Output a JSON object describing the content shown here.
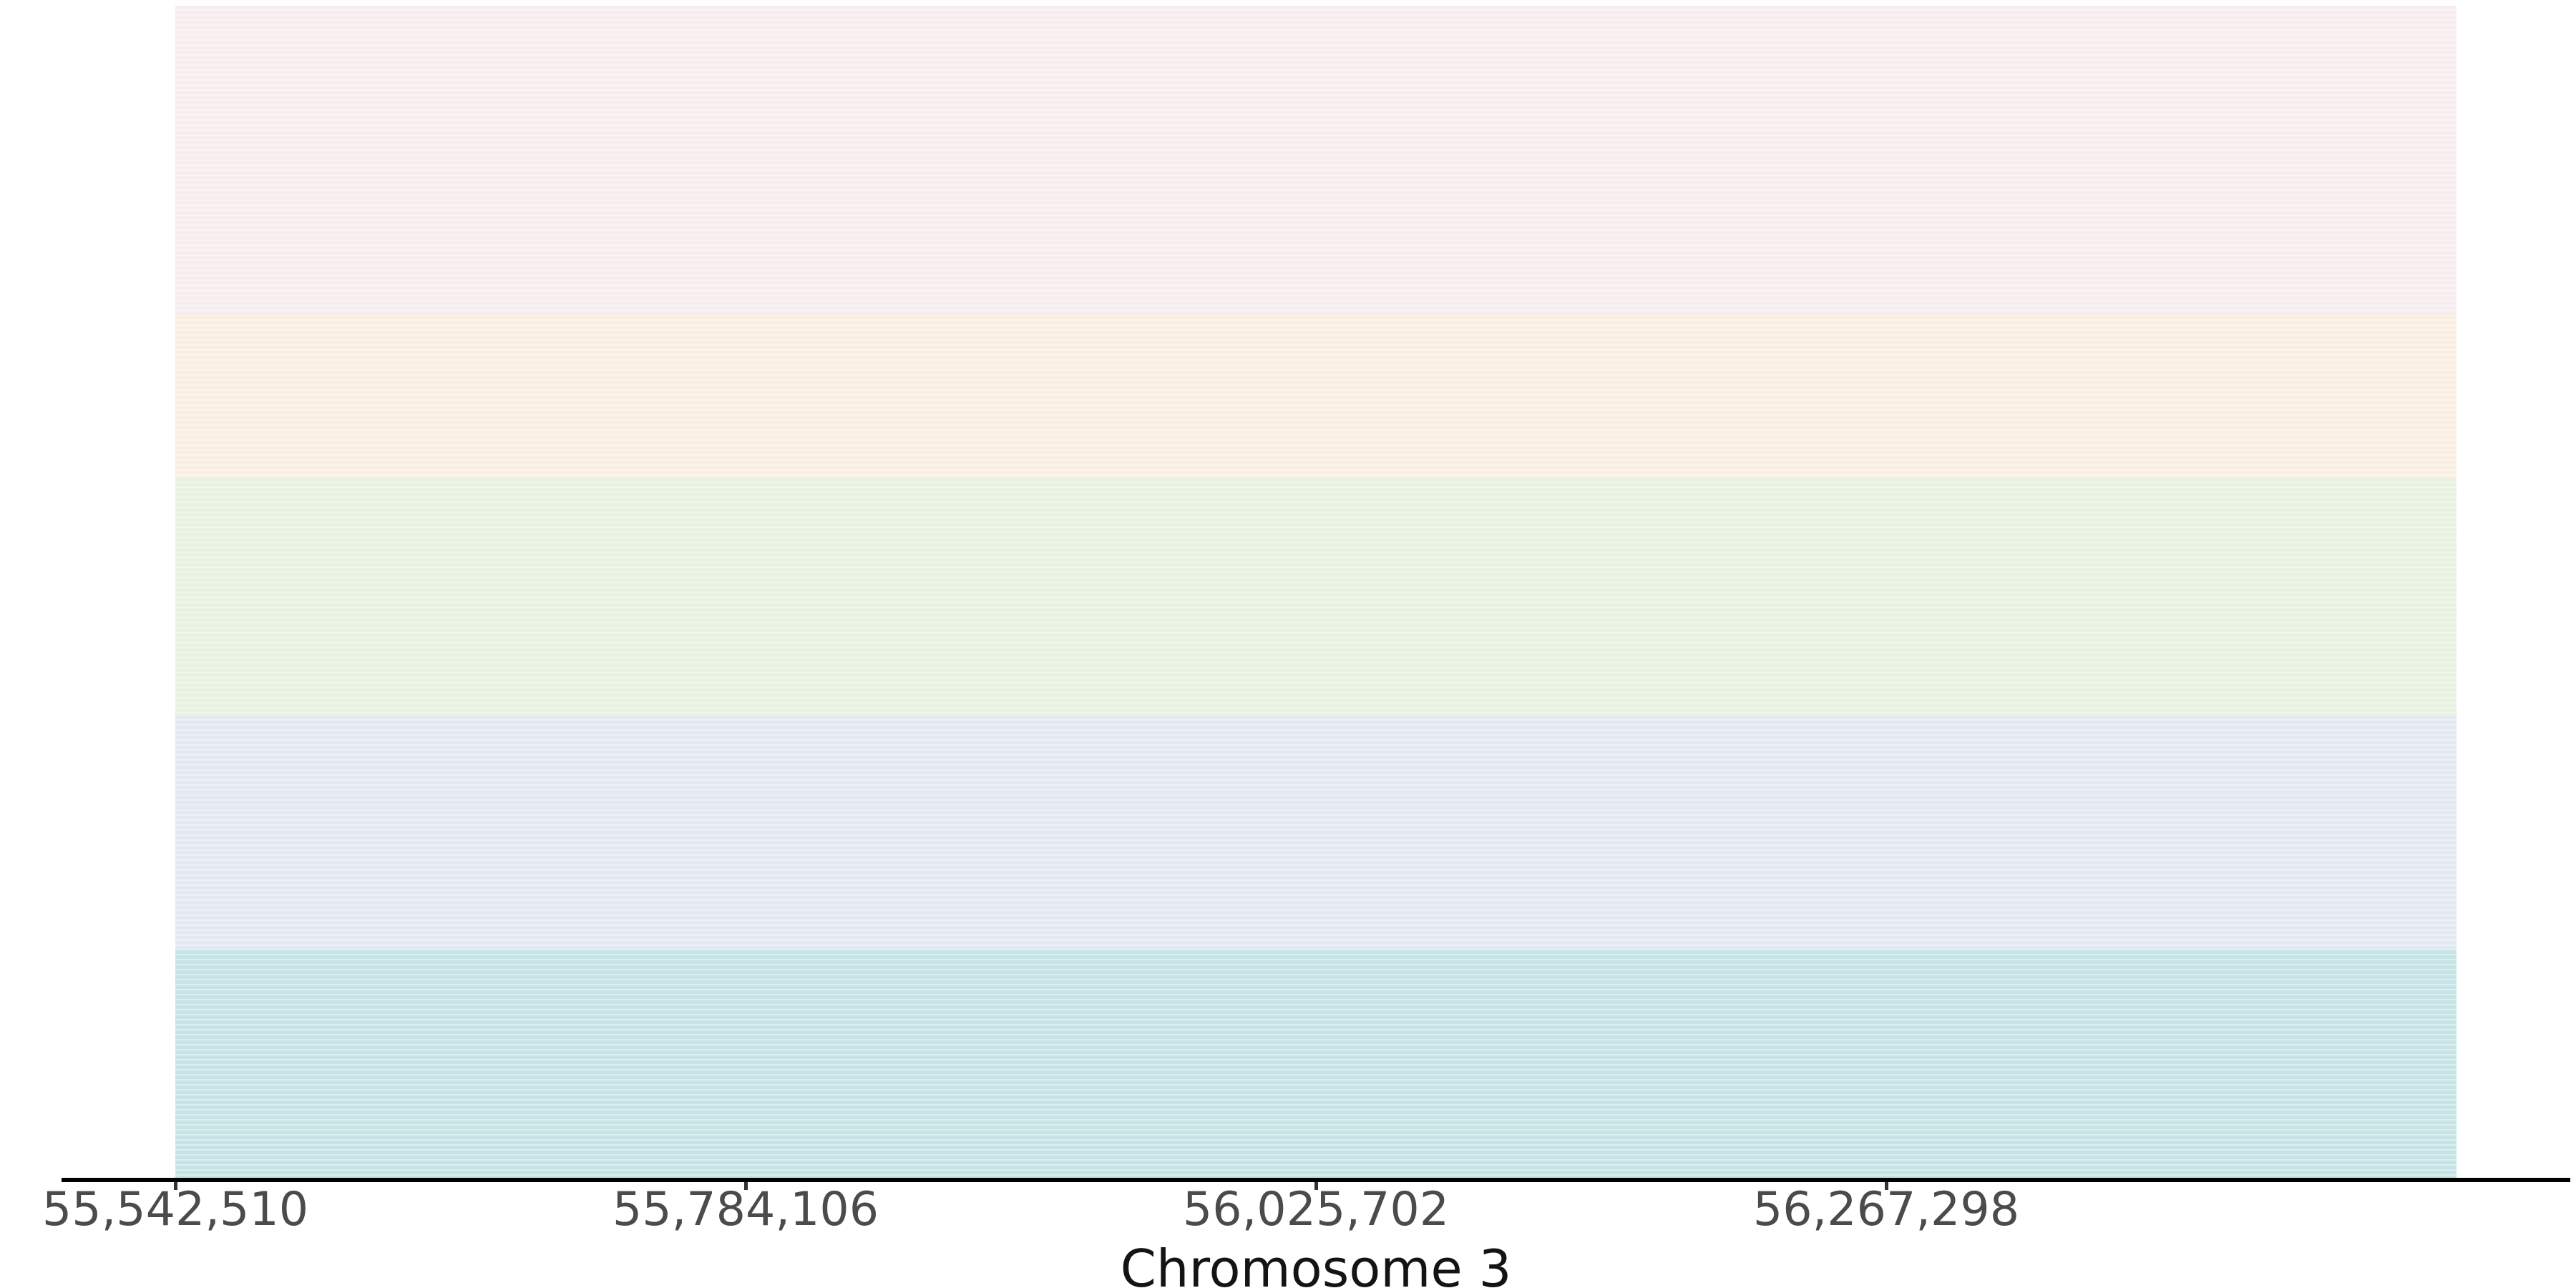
{
  "chart_data": {
    "type": "area",
    "title": "",
    "xlabel": "Chromosome 3",
    "ylabel": "",
    "x_ticks": [
      55542510,
      55784106,
      56025702,
      56267298
    ],
    "x_tick_labels": [
      "55,542,510",
      "55,784,106",
      "56,025,702",
      "56,267,298"
    ],
    "x_tick_interval": 241596,
    "x_range": {
      "band_start": 55542510,
      "band_end_approx": 56508894
    },
    "grid": "off",
    "legend": "none",
    "bands_top_to_bottom": [
      {
        "name": "band-1-pink",
        "color": "#f7edef",
        "height_fraction": 0.2644
      },
      {
        "name": "band-2-cream",
        "color": "#faeee1",
        "height_fraction": 0.1386
      },
      {
        "name": "band-3-green",
        "color": "#e9f1e1",
        "height_fraction": 0.2027
      },
      {
        "name": "band-4-blue",
        "color": "#e2e9f1",
        "height_fraction": 0.2003
      },
      {
        "name": "band-5-teal",
        "color": "#c6e4e6",
        "height_fraction": 0.194
      }
    ],
    "axis_line_color": "#000000",
    "tick_mark_color": "#333333",
    "tick_label_color": "#4b4b4b",
    "xlabel_color": "#141414",
    "background_color": "#ffffff"
  }
}
